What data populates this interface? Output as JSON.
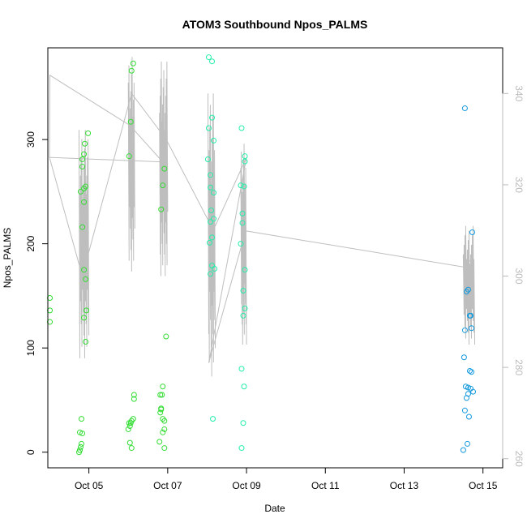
{
  "chart_data": {
    "type": "scatter",
    "title": "ATOM3 Southbound Npos_PALMS",
    "xlabel": "Date",
    "ylabel": "Npos_PALMS",
    "x_axis": {
      "type": "date",
      "range": [
        "2016-10-03T23:00",
        "2016-10-15T12:00"
      ],
      "ticks": [
        "2016-10-05",
        "2016-10-07",
        "2016-10-09",
        "2016-10-11",
        "2016-10-13",
        "2016-10-15"
      ],
      "tick_labels": [
        "Oct 05",
        "Oct 07",
        "Oct 09",
        "Oct 11",
        "Oct 13",
        "Oct 15"
      ]
    },
    "y_left": {
      "range": [
        -15,
        388
      ],
      "ticks": [
        0,
        100,
        200,
        300
      ],
      "tick_labels": [
        "0",
        "100",
        "200",
        "300"
      ]
    },
    "y_right": {
      "range": [
        258,
        350
      ],
      "ticks": [
        260,
        280,
        300,
        320,
        340
      ],
      "tick_labels": [
        "260",
        "280",
        "300",
        "320",
        "340"
      ],
      "color": "#bbbbbb"
    },
    "grid": false,
    "colors": {
      "point_green": "#33dd33",
      "point_mint": "#22eeaa",
      "point_blue": "#1199dd",
      "line_gray": "#bebebe",
      "axis": "#000000"
    },
    "series": [
      {
        "color": "#33dd33",
        "points": [
          [
            "2016-10-04T00:15",
            148
          ],
          [
            "2016-10-04T00:15",
            136
          ],
          [
            "2016-10-04T00:15",
            125
          ],
          [
            "2016-10-04T18:00",
            0
          ],
          [
            "2016-10-04T18:30",
            2
          ],
          [
            "2016-10-04T19:00",
            5
          ],
          [
            "2016-10-04T19:30",
            8
          ],
          [
            "2016-10-04T20:00",
            18
          ],
          [
            "2016-10-04T18:30",
            19
          ],
          [
            "2016-10-04T19:30",
            32
          ],
          [
            "2016-10-04T19:00",
            250
          ],
          [
            "2016-10-04T20:00",
            274
          ],
          [
            "2016-10-04T20:00",
            281
          ],
          [
            "2016-10-04T21:00",
            253
          ],
          [
            "2016-10-04T22:00",
            255
          ],
          [
            "2016-10-04T21:00",
            286
          ],
          [
            "2016-10-04T21:30",
            296
          ],
          [
            "2016-10-04T23:30",
            306
          ],
          [
            "2016-10-04T21:00",
            240
          ],
          [
            "2016-10-04T20:00",
            216
          ],
          [
            "2016-10-04T21:00",
            175
          ],
          [
            "2016-10-04T22:00",
            166
          ],
          [
            "2016-10-04T22:30",
            136
          ],
          [
            "2016-10-04T21:00",
            129
          ],
          [
            "2016-10-04T22:00",
            106
          ],
          [
            "2016-10-06T00:00",
            22
          ],
          [
            "2016-10-06T01:00",
            25
          ],
          [
            "2016-10-06T02:00",
            30
          ],
          [
            "2016-10-06T00:30",
            28
          ],
          [
            "2016-10-06T01:30",
            28
          ],
          [
            "2016-10-06T03:00",
            32
          ],
          [
            "2016-10-06T01:00",
            9
          ],
          [
            "2016-10-06T02:00",
            4
          ],
          [
            "2016-10-06T03:30",
            51
          ],
          [
            "2016-10-06T03:30",
            55
          ],
          [
            "2016-10-06T00:30",
            284
          ],
          [
            "2016-10-06T01:30",
            317
          ],
          [
            "2016-10-06T03:00",
            373
          ],
          [
            "2016-10-06T02:00",
            366
          ],
          [
            "2016-10-06T19:00",
            10
          ],
          [
            "2016-10-06T19:30",
            38
          ],
          [
            "2016-10-06T20:00",
            42
          ],
          [
            "2016-10-06T20:30",
            55
          ],
          [
            "2016-10-06T21:00",
            63
          ],
          [
            "2016-10-06T22:00",
            30
          ],
          [
            "2016-10-06T21:00",
            19
          ],
          [
            "2016-10-06T22:00",
            22
          ],
          [
            "2016-10-06T22:00",
            4
          ],
          [
            "2016-10-06T21:00",
            32
          ],
          [
            "2016-10-06T19:30",
            55
          ],
          [
            "2016-10-06T20:00",
            41
          ],
          [
            "2016-10-06T20:00",
            233
          ],
          [
            "2016-10-06T21:00",
            256
          ],
          [
            "2016-10-06T22:00",
            272
          ],
          [
            "2016-10-06T23:00",
            111
          ]
        ]
      },
      {
        "color": "#22eeaa",
        "points": [
          [
            "2016-10-08T01:00",
            379
          ],
          [
            "2016-10-08T03:00",
            375
          ],
          [
            "2016-10-08T03:00",
            321
          ],
          [
            "2016-10-08T01:00",
            311
          ],
          [
            "2016-10-08T04:00",
            299
          ],
          [
            "2016-10-08T00:30",
            281
          ],
          [
            "2016-10-08T02:00",
            266
          ],
          [
            "2016-10-08T02:00",
            254
          ],
          [
            "2016-10-08T04:00",
            249
          ],
          [
            "2016-10-08T02:30",
            232
          ],
          [
            "2016-10-08T04:00",
            224
          ],
          [
            "2016-10-08T02:00",
            221
          ],
          [
            "2016-10-08T03:00",
            206
          ],
          [
            "2016-10-08T01:30",
            201
          ],
          [
            "2016-10-08T03:00",
            179
          ],
          [
            "2016-10-08T04:30",
            176
          ],
          [
            "2016-10-08T02:00",
            171
          ],
          [
            "2016-10-08T03:30",
            32
          ],
          [
            "2016-10-08T21:00",
            311
          ],
          [
            "2016-10-08T23:00",
            284
          ],
          [
            "2016-10-08T23:00",
            279
          ],
          [
            "2016-10-08T20:30",
            256
          ],
          [
            "2016-10-08T22:30",
            255
          ],
          [
            "2016-10-08T21:30",
            229
          ],
          [
            "2016-10-08T21:30",
            220
          ],
          [
            "2016-10-08T20:30",
            200
          ],
          [
            "2016-10-08T23:00",
            175
          ],
          [
            "2016-10-08T22:00",
            155
          ],
          [
            "2016-10-08T23:00",
            138
          ],
          [
            "2016-10-08T22:00",
            131
          ],
          [
            "2016-10-08T21:00",
            80
          ],
          [
            "2016-10-08T22:30",
            63
          ],
          [
            "2016-10-08T22:00",
            28
          ],
          [
            "2016-10-08T21:00",
            4
          ]
        ]
      },
      {
        "color": "#1199dd",
        "points": [
          [
            "2016-10-14T13:00",
            330
          ],
          [
            "2016-10-14T17:30",
            211
          ],
          [
            "2016-10-14T14:00",
            154
          ],
          [
            "2016-10-14T15:00",
            156
          ],
          [
            "2016-10-14T16:00",
            131
          ],
          [
            "2016-10-14T16:30",
            131
          ],
          [
            "2016-10-14T17:00",
            119
          ],
          [
            "2016-10-14T13:00",
            117
          ],
          [
            "2016-10-14T12:30",
            91
          ],
          [
            "2016-10-14T16:00",
            78
          ],
          [
            "2016-10-14T17:00",
            77
          ],
          [
            "2016-10-14T13:30",
            63
          ],
          [
            "2016-10-14T15:00",
            62
          ],
          [
            "2016-10-14T16:30",
            61
          ],
          [
            "2016-10-14T18:00",
            58
          ],
          [
            "2016-10-14T15:00",
            56
          ],
          [
            "2016-10-14T14:00",
            52
          ],
          [
            "2016-10-14T13:00",
            40
          ],
          [
            "2016-10-14T15:30",
            34
          ],
          [
            "2016-10-14T14:30",
            8
          ],
          [
            "2016-10-14T12:00",
            2
          ]
        ]
      }
    ],
    "line_series": {
      "axis": "right",
      "color": "#bebebe",
      "guide_points": [
        [
          "2016-10-04T00:00",
          326
        ],
        [
          "2016-10-04T00:15",
          344
        ],
        [
          "2016-10-06T01:00",
          333
        ],
        [
          "2016-10-06T21:00",
          325
        ],
        [
          "2016-10-04T00:00",
          326
        ],
        [
          "2016-10-04T20:00",
          300
        ],
        [
          "2016-10-06T02:00",
          340
        ],
        [
          "2016-10-06T23:00",
          330
        ],
        [
          "2016-10-08T01:00",
          312
        ],
        [
          "2016-10-08T05:00",
          311
        ],
        [
          "2016-10-09T00:00",
          326
        ],
        [
          "2016-10-08T01:00",
          281
        ],
        [
          "2016-10-08T22:00",
          308
        ],
        [
          "2016-10-08T22:00",
          310
        ],
        [
          "2016-10-14T12:00",
          302
        ],
        [
          "2016-10-14T18:00",
          304
        ]
      ],
      "spike_clusters": [
        {
          "start": "2016-10-04T18:00",
          "end": "2016-10-04T23:30",
          "count": 14,
          "min": 282,
          "max": 332
        },
        {
          "start": "2016-10-06T00:00",
          "end": "2016-10-06T03:30",
          "count": 10,
          "min": 301,
          "max": 348
        },
        {
          "start": "2016-10-06T19:00",
          "end": "2016-10-06T23:30",
          "count": 13,
          "min": 300,
          "max": 347
        },
        {
          "start": "2016-10-08T00:30",
          "end": "2016-10-08T04:30",
          "count": 12,
          "min": 278,
          "max": 340
        },
        {
          "start": "2016-10-08T20:30",
          "end": "2016-10-08T23:30",
          "count": 10,
          "min": 285,
          "max": 329
        },
        {
          "start": "2016-10-14T12:00",
          "end": "2016-10-14T18:30",
          "count": 14,
          "min": 285,
          "max": 311
        }
      ]
    }
  }
}
